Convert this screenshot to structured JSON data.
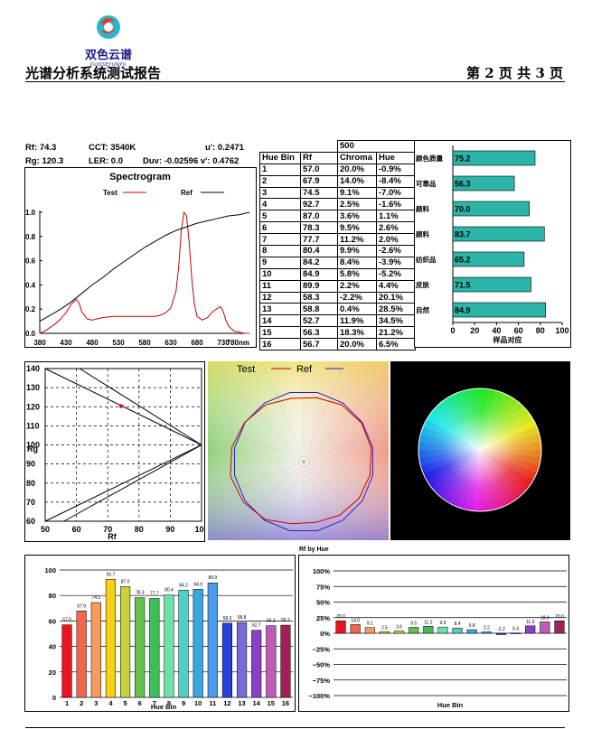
{
  "header": {
    "logo_text": "双色云谱",
    "logo_sub": "DUOSEYUNPU",
    "title": "光谱分析系统测试报告",
    "page": "第 2 页 共 3 页"
  },
  "metrics": {
    "rf": "Rf: 74.3",
    "cct": "CCT: 3540K",
    "u_prime": "u': 0.2471",
    "rg": "Rg: 120.3",
    "ler": "LER: 0.0",
    "duv_v": "Duv: -0.02596 v': 0.4762"
  },
  "colors": {
    "test": "#cc0000",
    "ref": "#000000",
    "teal": "#2ab5a8",
    "gamut_ref": "#2222cc"
  },
  "chart_data": [
    {
      "id": "spectrogram",
      "type": "line",
      "title": "Spectrogram",
      "xlabel": "",
      "ylabel": "",
      "x_unit": "nm",
      "xlim": [
        380,
        780
      ],
      "ylim": [
        0,
        1.0
      ],
      "x_ticks": [
        "380",
        "430",
        "480",
        "530",
        "580",
        "630",
        "680",
        "730",
        "780nm"
      ],
      "y_ticks": [
        "0.0",
        "0.2",
        "0.4",
        "0.6",
        "0.8",
        "1.0"
      ],
      "series": [
        {
          "name": "Test",
          "x": [
            380,
            390,
            400,
            410,
            420,
            430,
            440,
            450,
            455,
            460,
            470,
            480,
            490,
            500,
            520,
            540,
            560,
            580,
            600,
            610,
            620,
            630,
            640,
            645,
            650,
            655,
            660,
            665,
            670,
            675,
            680,
            690,
            700,
            710,
            720,
            725,
            730,
            735,
            740,
            750,
            760,
            770,
            780
          ],
          "y": [
            0.0,
            0.02,
            0.05,
            0.08,
            0.12,
            0.17,
            0.24,
            0.28,
            0.25,
            0.18,
            0.12,
            0.11,
            0.12,
            0.13,
            0.14,
            0.14,
            0.14,
            0.14,
            0.14,
            0.15,
            0.17,
            0.21,
            0.35,
            0.55,
            0.85,
            1.0,
            0.97,
            0.75,
            0.45,
            0.24,
            0.14,
            0.11,
            0.13,
            0.18,
            0.21,
            0.22,
            0.18,
            0.11,
            0.06,
            0.02,
            0.01,
            0.0,
            0.0
          ]
        },
        {
          "name": "Ref",
          "x": [
            380,
            400,
            420,
            440,
            460,
            480,
            500,
            520,
            540,
            560,
            580,
            600,
            620,
            640,
            660,
            680,
            700,
            720,
            740,
            760,
            780
          ],
          "y": [
            0.1,
            0.15,
            0.2,
            0.26,
            0.33,
            0.4,
            0.46,
            0.53,
            0.59,
            0.65,
            0.71,
            0.76,
            0.81,
            0.85,
            0.88,
            0.91,
            0.93,
            0.95,
            0.97,
            0.98,
            1.0
          ]
        }
      ]
    },
    {
      "id": "hue_bin_table",
      "type": "table",
      "header_top": "500",
      "columns": [
        "Hue Bin",
        "Rf",
        "Chroma",
        "Hue"
      ],
      "rows": [
        [
          "1",
          "57.0",
          "20.0%",
          "-0.9%"
        ],
        [
          "2",
          "67.9",
          "14.0%",
          "-8.4%"
        ],
        [
          "3",
          "74.5",
          "9.1%",
          "-7.0%"
        ],
        [
          "4",
          "92.7",
          "2.5%",
          "-1.6%"
        ],
        [
          "5",
          "87.0",
          "3.6%",
          "1.1%"
        ],
        [
          "6",
          "78.3",
          "9.5%",
          "2.6%"
        ],
        [
          "7",
          "77.7",
          "11.2%",
          "2.0%"
        ],
        [
          "8",
          "80.4",
          "9.9%",
          "-2.6%"
        ],
        [
          "9",
          "84.2",
          "8.4%",
          "-3.9%"
        ],
        [
          "10",
          "84.9",
          "5.8%",
          "-5.2%"
        ],
        [
          "11",
          "89.9",
          "2.2%",
          "4.4%"
        ],
        [
          "12",
          "58.3",
          "-2.2%",
          "20.1%"
        ],
        [
          "13",
          "58.8",
          "0.4%",
          "28.5%"
        ],
        [
          "14",
          "52.7",
          "11.9%",
          "34.5%"
        ],
        [
          "15",
          "56.3",
          "18.3%",
          "21.2%"
        ],
        [
          "16",
          "56.7",
          "20.0%",
          "6.5%"
        ]
      ]
    },
    {
      "id": "sample_comparison",
      "type": "bar",
      "orientation": "horizontal",
      "xlabel": "样品对应",
      "xlim": [
        0,
        100
      ],
      "x_ticks": [
        "0",
        "20",
        "40",
        "60",
        "80",
        "100"
      ],
      "categories": [
        "颜色质量",
        "可靠品",
        "颜料",
        "颜料",
        "纺织品",
        "皮肤",
        "自然"
      ],
      "values": [
        75.2,
        56.3,
        70.0,
        83.7,
        65.2,
        71.5,
        84.9
      ],
      "value_labels": [
        "75.2",
        "56.3",
        "70.0",
        "83.7",
        "65.2",
        "71.5",
        "84.9"
      ]
    },
    {
      "id": "rf_rg",
      "type": "scatter",
      "xlabel": "Rf",
      "ylabel": "Rg",
      "xlim": [
        50,
        100
      ],
      "ylim": [
        60,
        140
      ],
      "x_ticks": [
        "50",
        "60",
        "70",
        "80",
        "90",
        "100"
      ],
      "y_ticks": [
        "60",
        "70",
        "80",
        "90",
        "100",
        "110",
        "120",
        "130",
        "140"
      ],
      "points": [
        {
          "x": 74.3,
          "y": 120.3
        }
      ]
    },
    {
      "id": "gamut",
      "type": "line",
      "legend": [
        "Test",
        "Ref"
      ]
    },
    {
      "id": "rf_by_hue",
      "type": "bar",
      "title": "Rf by Hue",
      "xlabel": "Hue Bin",
      "ylim": [
        0,
        100
      ],
      "y_ticks": [
        "0",
        "20",
        "40",
        "60",
        "80",
        "100"
      ],
      "categories": [
        "1",
        "2",
        "3",
        "4",
        "5",
        "6",
        "7",
        "8",
        "9",
        "10",
        "11",
        "12",
        "13",
        "14",
        "15",
        "16"
      ],
      "values": [
        57.0,
        67.9,
        74.5,
        92.7,
        87.0,
        78.3,
        77.7,
        80.4,
        84.2,
        84.9,
        89.9,
        58.3,
        58.8,
        52.7,
        56.3,
        56.7
      ],
      "value_labels": [
        "57.0",
        "67.9",
        "74.5",
        "92.7",
        "87.0",
        "78.3",
        "77.7",
        "80.4",
        "84.2",
        "84.9",
        "89.9",
        "58.3",
        "58.8",
        "52.7",
        "56.3",
        "56.7"
      ],
      "bar_colors": [
        "#e8141e",
        "#f2664b",
        "#f79a5c",
        "#f5d018",
        "#c6d33a",
        "#62c24e",
        "#3fbe58",
        "#6fe0a9",
        "#4bd0c4",
        "#3aa6e0",
        "#4a9be8",
        "#2a3fd8",
        "#7a6bd8",
        "#8a3fc8",
        "#c05ab8",
        "#a31f56"
      ]
    },
    {
      "id": "chroma_by_hue",
      "type": "bar",
      "title": "Chroma by Hue",
      "xlabel": "Hue Bin",
      "ylim": [
        -100,
        100
      ],
      "y_ticks": [
        "100%",
        "75%",
        "50%",
        "25%",
        "0%",
        "−25%",
        "−50%",
        "−75%",
        "−100%"
      ],
      "categories": [
        "1",
        "2",
        "3",
        "4",
        "5",
        "6",
        "7",
        "8",
        "9",
        "10",
        "11",
        "12",
        "13",
        "14",
        "15",
        "16"
      ],
      "values": [
        20.0,
        14.0,
        9.1,
        2.5,
        3.6,
        9.5,
        11.2,
        9.9,
        8.4,
        5.8,
        2.2,
        -2.2,
        0.4,
        11.9,
        18.3,
        20.0
      ],
      "value_labels": [
        "20.0",
        "14.0",
        "9.1",
        "2.5",
        "3.6",
        "9.5",
        "11.2",
        "9.9",
        "8.4",
        "5.8",
        "2.2",
        "-2.2",
        "0.4",
        "11.9",
        "18.3",
        "20.0"
      ]
    }
  ]
}
